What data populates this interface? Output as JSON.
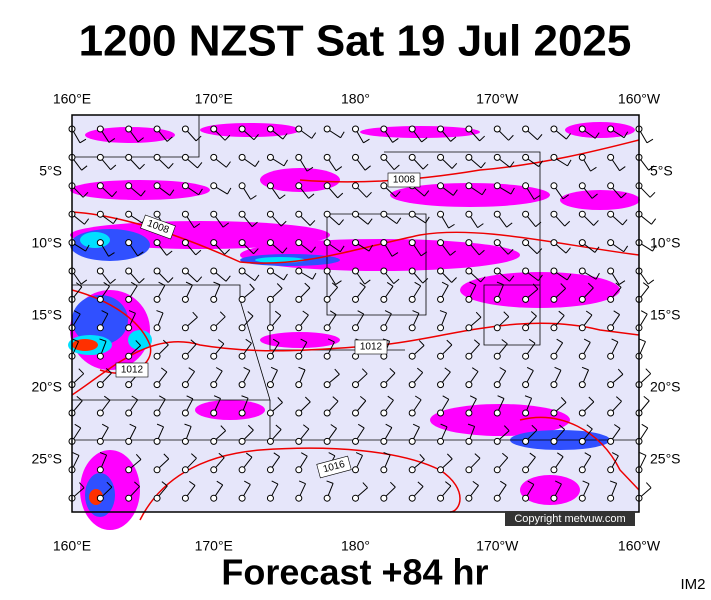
{
  "header": {
    "title": "1200 NZST Sat 19 Jul 2025"
  },
  "map": {
    "top_labels": [
      "160°E",
      "170°E",
      "180°",
      "170°W",
      "160°W"
    ],
    "bottom_labels": [
      "160°E",
      "170°E",
      "180°",
      "170°W",
      "160°W"
    ],
    "left_labels": [
      "5°S",
      "10°S",
      "15°S",
      "20°S",
      "25°S"
    ],
    "right_labels": [
      "5°S",
      "10°S",
      "15°S",
      "20°S",
      "25°S"
    ],
    "isobar_labels": [
      "1008",
      "1008",
      "1012",
      "1012",
      "1016"
    ],
    "copyright": "Copyright metvuw.com"
  },
  "footer": {
    "forecast": "Forecast +84 hr",
    "code": "IM2"
  }
}
